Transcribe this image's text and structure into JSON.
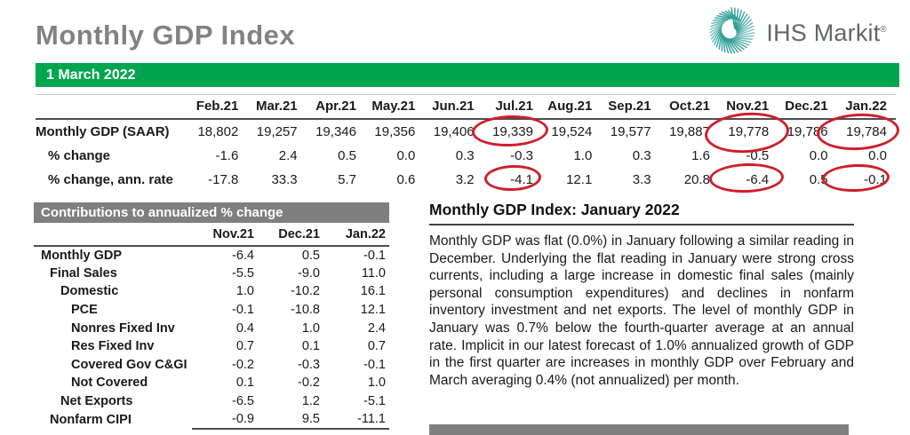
{
  "page": {
    "title": "Monthly GDP Index",
    "date_banner": "1 March 2022"
  },
  "logo": {
    "brand": "IHS Markit",
    "registered": "®"
  },
  "colors": {
    "accent_green": "#00A64F",
    "section_bar_gray": "#7F7F7F",
    "highlight_red": "#CD1F2B",
    "title_gray": "#808285",
    "logo_teal": "#2E9E96"
  },
  "gdp_table": {
    "columns": [
      "Feb.21",
      "Mar.21",
      "Apr.21",
      "May.21",
      "Jun.21",
      "Jul.21",
      "Aug.21",
      "Sep.21",
      "Oct.21",
      "Nov.21",
      "Dec.21",
      "Jan.22"
    ],
    "rows": [
      {
        "label": "Monthly GDP (SAAR)",
        "bold": true,
        "indent": 0,
        "values": [
          "18,802",
          "19,257",
          "19,346",
          "19,356",
          "19,406",
          "19,339",
          "19,524",
          "19,577",
          "19,887",
          "19,778",
          "19,786",
          "19,784"
        ]
      },
      {
        "label": "% change",
        "bold": false,
        "indent": 1,
        "values": [
          "-1.6",
          "2.4",
          "0.5",
          "0.0",
          "0.3",
          "-0.3",
          "1.0",
          "0.3",
          "1.6",
          "-0.5",
          "0.0",
          "0.0"
        ]
      },
      {
        "label": "% change, ann. rate",
        "bold": false,
        "indent": 1,
        "values": [
          "-17.8",
          "33.3",
          "5.7",
          "0.6",
          "3.2",
          "-4.1",
          "12.1",
          "3.3",
          "20.8",
          "-6.4",
          "0.5",
          "-0.1"
        ]
      }
    ],
    "circled_values": [
      "19,339",
      "19,778",
      "19,784",
      "-4.1",
      "-6.4",
      "-0.1"
    ]
  },
  "contributions_table": {
    "title": "Contributions to annualized % change",
    "columns": [
      "Nov.21",
      "Dec.21",
      "Jan.22"
    ],
    "rows": [
      {
        "label": "Monthly GDP",
        "indent": 0,
        "values": [
          "-6.4",
          "0.5",
          "-0.1"
        ]
      },
      {
        "label": "Final Sales",
        "indent": 1,
        "values": [
          "-5.5",
          "-9.0",
          "11.0"
        ]
      },
      {
        "label": "Domestic",
        "indent": 2,
        "values": [
          "1.0",
          "-10.2",
          "16.1"
        ]
      },
      {
        "label": "PCE",
        "indent": 3,
        "values": [
          "-0.1",
          "-10.8",
          "12.1"
        ]
      },
      {
        "label": "Nonres Fixed Inv",
        "indent": 3,
        "values": [
          "0.4",
          "1.0",
          "2.4"
        ]
      },
      {
        "label": "Res Fixed Inv",
        "indent": 3,
        "values": [
          "0.7",
          "0.1",
          "0.7"
        ]
      },
      {
        "label": "Covered Gov C&GI",
        "indent": 3,
        "values": [
          "-0.2",
          "-0.3",
          "-0.1"
        ]
      },
      {
        "label": "Not Covered",
        "indent": 3,
        "values": [
          "0.1",
          "-0.2",
          "1.0"
        ]
      },
      {
        "label": "Net Exports",
        "indent": 2,
        "values": [
          "-6.5",
          "1.2",
          "-5.1"
        ]
      },
      {
        "label": "Nonfarm CIPI",
        "indent": 1,
        "values": [
          "-0.9",
          "9.5",
          "-11.1"
        ]
      }
    ]
  },
  "commentary": {
    "heading": "Monthly GDP Index: January 2022",
    "body": "Monthly GDP was flat (0.0%) in January following a similar reading in December. Underlying the flat reading in January were strong cross currents, including a large increase in domestic final sales (mainly personal consumption expenditures) and declines in nonfarm inventory investment and net exports. The level of monthly GDP in January was 0.7% below the fourth-quarter average at an annual rate. Implicit in our latest forecast of 1.0% annualized growth of GDP in the first quarter are increases in monthly GDP over February and March averaging 0.4% (not annualized) per month."
  }
}
